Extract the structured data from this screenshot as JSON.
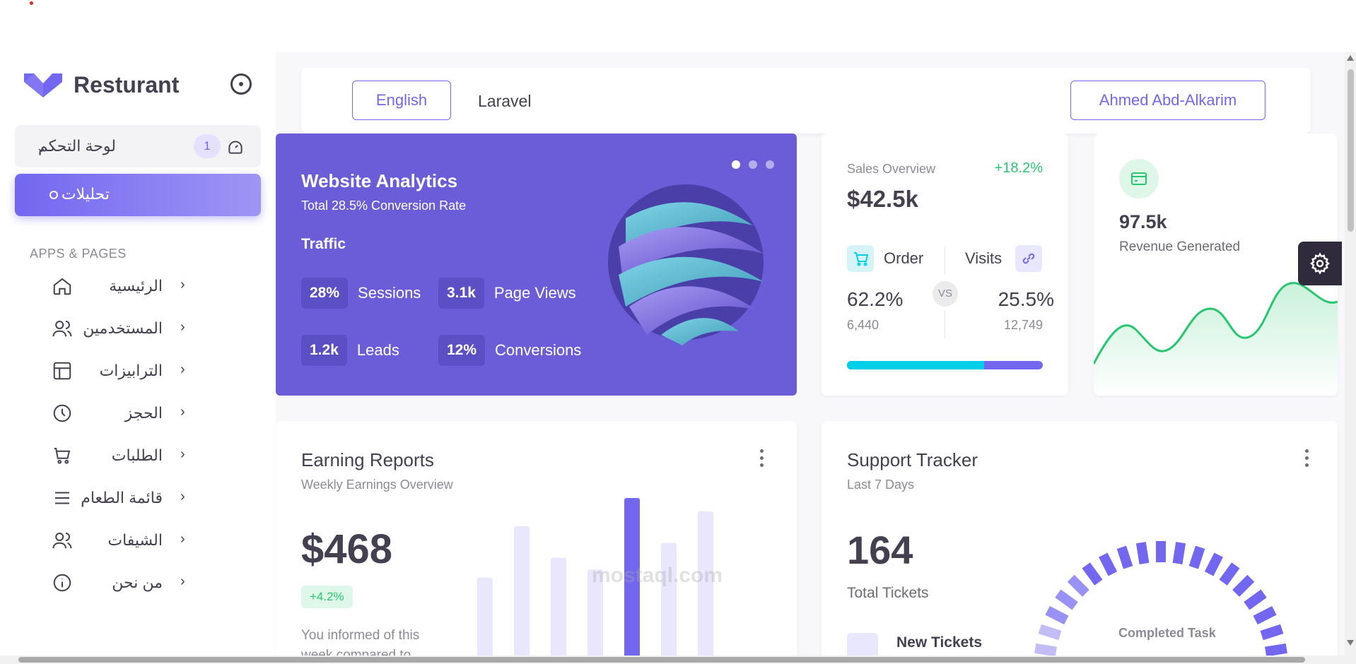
{
  "brand": {
    "name": "Resturant"
  },
  "sidebar": {
    "dashboard": {
      "label": "لوحة التحكم",
      "badge": "1"
    },
    "active": {
      "label": "تحليلات"
    },
    "section_title": "APPS & PAGES",
    "items": [
      {
        "label": "الرئيسية",
        "icon": "home-icon"
      },
      {
        "label": "المستخدمين",
        "icon": "users-icon"
      },
      {
        "label": "الترابيزات",
        "icon": "table-icon"
      },
      {
        "label": "الحجز",
        "icon": "clock-icon"
      },
      {
        "label": "الطلبات",
        "icon": "cart-icon"
      },
      {
        "label": "قائمة الطعام",
        "icon": "menu-icon"
      },
      {
        "label": "الشيفات",
        "icon": "chefs-icon"
      },
      {
        "label": "من نحن",
        "icon": "info-icon"
      }
    ]
  },
  "topbar": {
    "language": "English",
    "framework": "Laravel",
    "user": "Ahmed Abd-Alkarim"
  },
  "analytics": {
    "title": "Website Analytics",
    "subtitle": "Total 28.5% Conversion Rate",
    "section": "Traffic",
    "metrics": [
      {
        "value": "28%",
        "label": "Sessions"
      },
      {
        "value": "3.1k",
        "label": "Page Views"
      },
      {
        "value": "1.2k",
        "label": "Leads"
      },
      {
        "value": "12%",
        "label": "Conversions"
      }
    ]
  },
  "sales": {
    "label": "Sales Overview",
    "delta": "+18.2%",
    "amount": "$42.5k",
    "order_label": "Order",
    "visits_label": "Visits",
    "vs": "VS",
    "order_pct": "62.2%",
    "order_count": "6,440",
    "visits_pct": "25.5%",
    "visits_count": "12,749",
    "order_share": 0.7
  },
  "revenue": {
    "value": "97.5k",
    "label": "Revenue Generated"
  },
  "earning": {
    "title": "Earning Reports",
    "subtitle": "Weekly Earnings Overview",
    "amount": "$468",
    "delta": "+4.2%",
    "note": "You informed of this week compared to",
    "bars": [
      0.52,
      0.83,
      0.64,
      0.57,
      1.0,
      0.73,
      0.92
    ],
    "highlight_index": 4
  },
  "support": {
    "title": "Support Tracker",
    "subtitle": "Last 7 Days",
    "count": "164",
    "count_label": "Total Tickets",
    "new_label": "New Tickets",
    "gauge_label": "Completed Task"
  },
  "watermark": "mostaql.com",
  "colors": {
    "primary": "#7367f0",
    "success": "#28c76f",
    "info": "#00cfe8",
    "dark": "#2f2b3d"
  }
}
